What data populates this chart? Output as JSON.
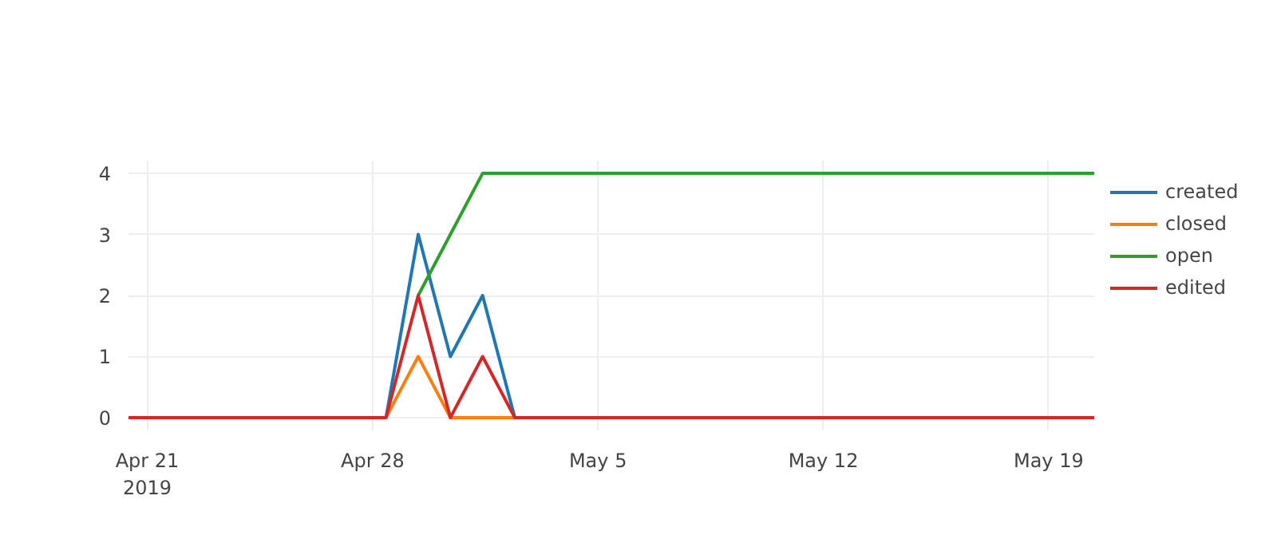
{
  "chart_data": {
    "type": "line",
    "x": [
      "2019-04-20T10:00",
      "2019-04-21T10:00",
      "2019-04-22T10:00",
      "2019-04-23T10:00",
      "2019-04-24T10:00",
      "2019-04-25T10:00",
      "2019-04-26T10:00",
      "2019-04-27T10:00",
      "2019-04-28T10:00",
      "2019-04-29T10:00",
      "2019-04-30T10:00",
      "2019-05-01T10:00",
      "2019-05-02T10:00",
      "2019-05-03T10:00",
      "2019-05-04T10:00",
      "2019-05-05T10:00",
      "2019-05-06T10:00",
      "2019-05-07T10:00",
      "2019-05-08T10:00",
      "2019-05-09T10:00",
      "2019-05-10T10:00",
      "2019-05-11T10:00",
      "2019-05-12T10:00",
      "2019-05-13T10:00",
      "2019-05-14T10:00",
      "2019-05-15T10:00",
      "2019-05-16T10:00",
      "2019-05-17T10:00",
      "2019-05-18T10:00",
      "2019-05-19T10:00",
      "2019-05-20T10:00"
    ],
    "series": [
      {
        "name": "created",
        "color": "#1f77b4",
        "values": [
          null,
          null,
          null,
          null,
          null,
          null,
          null,
          null,
          0,
          3,
          1,
          2,
          0,
          null,
          null,
          null,
          null,
          null,
          null,
          null,
          null,
          null,
          null,
          null,
          null,
          null,
          null,
          null,
          null,
          null,
          null
        ]
      },
      {
        "name": "closed",
        "color": "#ff7f0e",
        "values": [
          null,
          null,
          null,
          null,
          null,
          null,
          null,
          null,
          0,
          1,
          0,
          0,
          0,
          null,
          null,
          null,
          null,
          null,
          null,
          null,
          null,
          null,
          null,
          null,
          null,
          null,
          null,
          null,
          null,
          null,
          null
        ]
      },
      {
        "name": "open",
        "color": "#2ca02c",
        "values": [
          null,
          null,
          null,
          null,
          null,
          null,
          null,
          null,
          null,
          2,
          3,
          4,
          4,
          4,
          4,
          4,
          4,
          4,
          4,
          4,
          4,
          4,
          4,
          4,
          4,
          4,
          4,
          4,
          4,
          4,
          4
        ]
      },
      {
        "name": "edited",
        "color": "#d62728",
        "values": [
          0,
          0,
          0,
          0,
          0,
          0,
          0,
          0,
          0,
          2,
          0,
          1,
          0,
          0,
          0,
          0,
          0,
          0,
          0,
          0,
          0,
          0,
          0,
          0,
          0,
          0,
          0,
          0,
          0,
          0,
          0
        ]
      }
    ],
    "xlim": [
      "2019-04-20T10:00",
      "2019-05-20T10:00"
    ],
    "xticks": [
      {
        "value": "2019-04-21",
        "label": "Apr 21\n2019"
      },
      {
        "value": "2019-04-28",
        "label": "Apr 28"
      },
      {
        "value": "2019-05-05",
        "label": "May 5"
      },
      {
        "value": "2019-05-12",
        "label": "May 12"
      },
      {
        "value": "2019-05-19",
        "label": "May 19"
      }
    ],
    "ylim": [
      -0.21,
      4.21
    ],
    "yticks": [
      0,
      1,
      2,
      3,
      4
    ],
    "grid": true,
    "legend": "right",
    "marker": "none",
    "line_style": "solid"
  }
}
